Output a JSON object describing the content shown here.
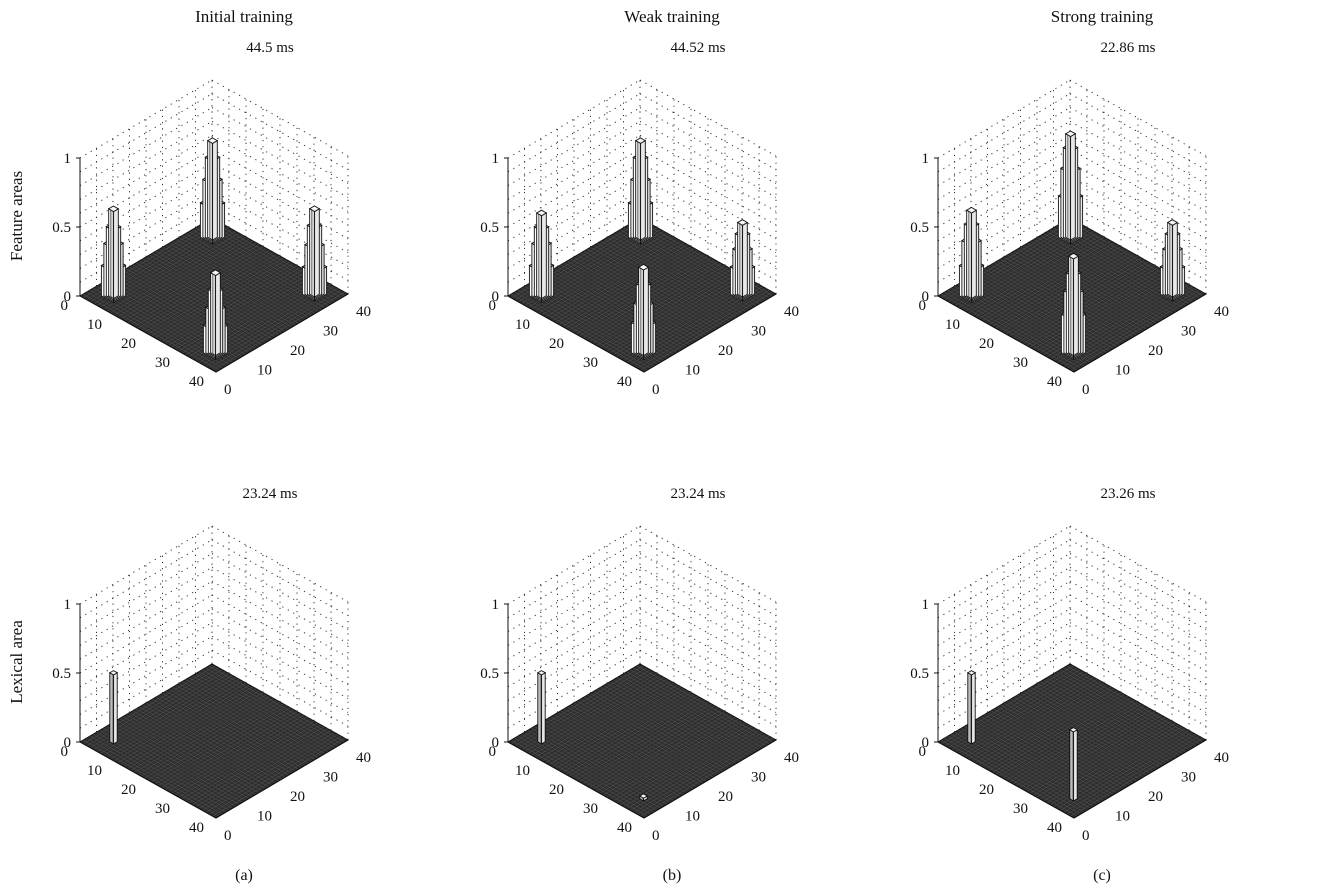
{
  "figure": {
    "columns": [
      {
        "title": "Initial training",
        "label": "(a)"
      },
      {
        "title": "Weak training",
        "label": "(b)"
      },
      {
        "title": "Strong training",
        "label": "(c)"
      }
    ],
    "rows": [
      {
        "ylabel": "Feature areas"
      },
      {
        "ylabel": "Lexical area"
      }
    ]
  },
  "chart_data": [
    {
      "type": "bar3d",
      "row": "Feature areas",
      "column": "Initial training",
      "title": "44.5 ms",
      "xlim": [
        0,
        40
      ],
      "ylim": [
        0,
        40
      ],
      "zlim": [
        0,
        1
      ],
      "xticks": [
        "0",
        "10",
        "20",
        "30",
        "40"
      ],
      "yticks": [
        "0",
        "10",
        "20",
        "30",
        "40"
      ],
      "zticks": [
        "0",
        "0.5",
        "1"
      ],
      "grid": true,
      "peaks": [
        {
          "x": 5,
          "y": 5,
          "heights": [
            0.22,
            0.38,
            0.5,
            0.63
          ]
        },
        {
          "x": 5,
          "y": 35,
          "heights": [
            0.25,
            0.42,
            0.58,
            0.7
          ]
        },
        {
          "x": 35,
          "y": 5,
          "heights": [
            0.2,
            0.33,
            0.46,
            0.58
          ]
        },
        {
          "x": 35,
          "y": 35,
          "heights": [
            0.2,
            0.36,
            0.5,
            0.62
          ]
        }
      ]
    },
    {
      "type": "bar3d",
      "row": "Feature areas",
      "column": "Weak training",
      "title": "44.52 ms",
      "xlim": [
        0,
        40
      ],
      "ylim": [
        0,
        40
      ],
      "zlim": [
        0,
        1
      ],
      "xticks": [
        "0",
        "10",
        "20",
        "30",
        "40"
      ],
      "yticks": [
        "0",
        "10",
        "20",
        "30",
        "40"
      ],
      "zticks": [
        "0",
        "0.5",
        "1"
      ],
      "grid": true,
      "peaks": [
        {
          "x": 5,
          "y": 5,
          "heights": [
            0.22,
            0.38,
            0.5,
            0.6
          ]
        },
        {
          "x": 5,
          "y": 35,
          "heights": [
            0.25,
            0.42,
            0.58,
            0.7
          ]
        },
        {
          "x": 35,
          "y": 5,
          "heights": [
            0.22,
            0.36,
            0.5,
            0.62
          ]
        },
        {
          "x": 35,
          "y": 35,
          "heights": [
            0.2,
            0.33,
            0.44,
            0.52
          ]
        }
      ]
    },
    {
      "type": "bar3d",
      "row": "Feature areas",
      "column": "Strong training",
      "title": "22.86 ms",
      "xlim": [
        0,
        40
      ],
      "ylim": [
        0,
        40
      ],
      "zlim": [
        0,
        1
      ],
      "xticks": [
        "0",
        "10",
        "20",
        "30",
        "40"
      ],
      "yticks": [
        "0",
        "10",
        "20",
        "30",
        "40"
      ],
      "zticks": [
        "0",
        "0.5",
        "1"
      ],
      "grid": true,
      "peaks": [
        {
          "x": 5,
          "y": 5,
          "heights": [
            0.22,
            0.4,
            0.52,
            0.62
          ]
        },
        {
          "x": 5,
          "y": 35,
          "heights": [
            0.3,
            0.5,
            0.65,
            0.75
          ]
        },
        {
          "x": 35,
          "y": 5,
          "heights": [
            0.28,
            0.45,
            0.58,
            0.7
          ]
        },
        {
          "x": 35,
          "y": 35,
          "heights": [
            0.2,
            0.33,
            0.44,
            0.52
          ]
        }
      ]
    },
    {
      "type": "bar3d",
      "row": "Lexical area",
      "column": "Initial training",
      "title": "23.24 ms",
      "xlim": [
        0,
        40
      ],
      "ylim": [
        0,
        40
      ],
      "zlim": [
        0,
        1
      ],
      "xticks": [
        "0",
        "10",
        "20",
        "30",
        "40"
      ],
      "yticks": [
        "0",
        "10",
        "20",
        "30",
        "40"
      ],
      "zticks": [
        "0",
        "0.5",
        "1"
      ],
      "grid": true,
      "peaks": [
        {
          "x": 5,
          "y": 5,
          "heights": [
            0.5
          ]
        }
      ]
    },
    {
      "type": "bar3d",
      "row": "Lexical area",
      "column": "Weak training",
      "title": "23.24 ms",
      "xlim": [
        0,
        40
      ],
      "ylim": [
        0,
        40
      ],
      "zlim": [
        0,
        1
      ],
      "xticks": [
        "0",
        "10",
        "20",
        "30",
        "40"
      ],
      "yticks": [
        "0",
        "10",
        "20",
        "30",
        "40"
      ],
      "zticks": [
        "0",
        "0.5",
        "1"
      ],
      "grid": true,
      "peaks": [
        {
          "x": 5,
          "y": 5,
          "heights": [
            0.5
          ]
        },
        {
          "x": 35,
          "y": 5,
          "heights": [
            0.02
          ]
        }
      ]
    },
    {
      "type": "bar3d",
      "row": "Lexical area",
      "column": "Strong training",
      "title": "23.26 ms",
      "xlim": [
        0,
        40
      ],
      "ylim": [
        0,
        40
      ],
      "zlim": [
        0,
        1
      ],
      "xticks": [
        "0",
        "10",
        "20",
        "30",
        "40"
      ],
      "yticks": [
        "0",
        "10",
        "20",
        "30",
        "40"
      ],
      "zticks": [
        "0",
        "0.5",
        "1"
      ],
      "grid": true,
      "peaks": [
        {
          "x": 5,
          "y": 5,
          "heights": [
            0.5
          ]
        },
        {
          "x": 35,
          "y": 5,
          "heights": [
            0.5
          ]
        }
      ]
    }
  ]
}
